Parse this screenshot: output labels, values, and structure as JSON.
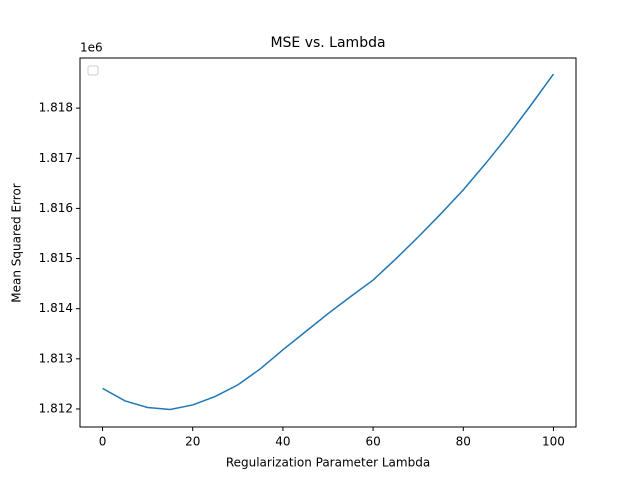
{
  "chart_data": {
    "type": "line",
    "title": "MSE vs. Lambda",
    "x_label": "Regularization Parameter Lambda",
    "y_label": "Mean Squared Error",
    "y_offset_label": "1e6",
    "x": [
      0,
      5,
      10,
      15,
      20,
      25,
      30,
      35,
      40,
      45,
      50,
      55,
      60,
      65,
      70,
      75,
      80,
      85,
      90,
      95,
      100
    ],
    "series": [
      {
        "color": "#1f77b4",
        "values": [
          1812410,
          1812160,
          1812030,
          1811990,
          1812080,
          1812250,
          1812480,
          1812800,
          1813180,
          1813540,
          1813900,
          1814240,
          1814570,
          1814990,
          1815430,
          1815890,
          1816370,
          1816900,
          1817460,
          1818060,
          1818680
        ]
      }
    ],
    "xlim": [
      -5,
      105
    ],
    "xticks": [
      0,
      20,
      40,
      60,
      80,
      100
    ],
    "ylim": [
      1811640,
      1819000
    ],
    "yticks": [
      {
        "value": 1812000,
        "label": "1.812"
      },
      {
        "value": 1813000,
        "label": "1.813"
      },
      {
        "value": 1814000,
        "label": "1.814"
      },
      {
        "value": 1815000,
        "label": "1.815"
      },
      {
        "value": 1816000,
        "label": "1.816"
      },
      {
        "value": 1817000,
        "label": "1.817"
      },
      {
        "value": 1818000,
        "label": "1.818"
      }
    ]
  }
}
